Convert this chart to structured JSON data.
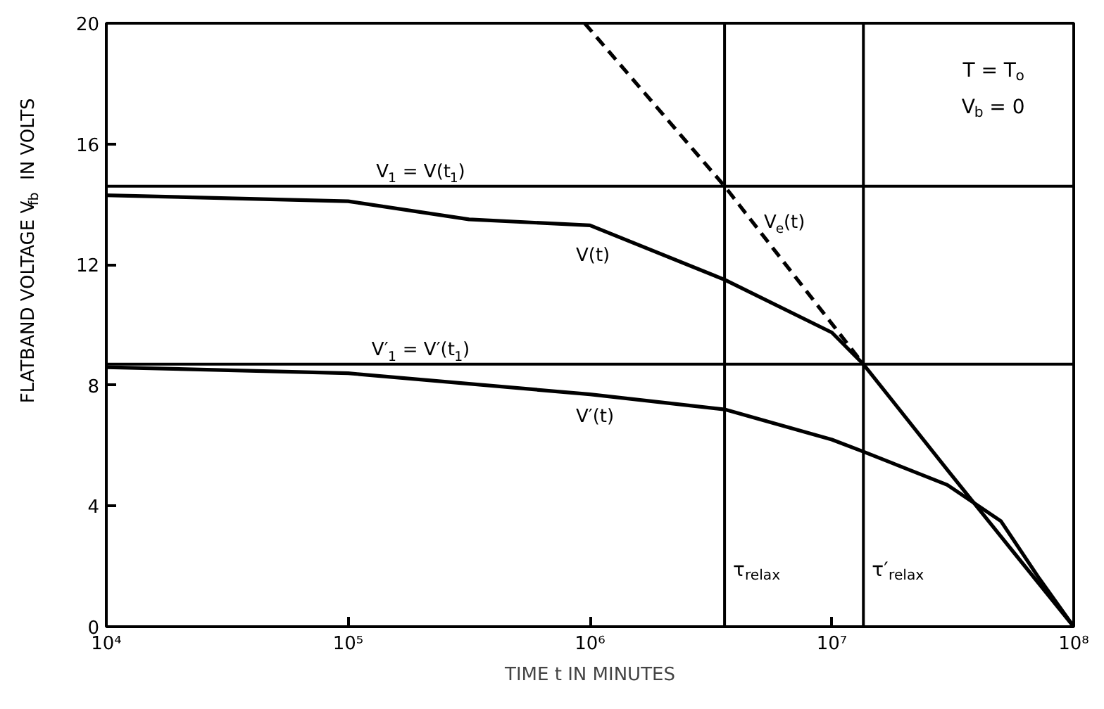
{
  "chart_data": {
    "type": "line",
    "xlabel": "TIME t IN MINUTES",
    "ylabel": "FLATBAND VOLTAGE V$_{fb}$ IN VOLTS",
    "log": "x",
    "xlim": [
      10000,
      100000000
    ],
    "ylim": [
      0,
      20
    ],
    "xticks": [
      {
        "value": 10000,
        "label": "10⁴"
      },
      {
        "value": 100000,
        "label": "10⁵"
      },
      {
        "value": 1000000,
        "label": "10⁶"
      },
      {
        "value": 10000000,
        "label": "10⁷"
      },
      {
        "value": 100000000,
        "label": "10⁸"
      }
    ],
    "yticks": [
      0,
      4,
      8,
      12,
      16,
      20
    ],
    "grid": false,
    "marker": "none",
    "series": [
      {
        "name": "V(t)",
        "color": "#000000",
        "line_style": "solid",
        "x": [
          10000,
          100000,
          316000,
          1000000,
          3600000,
          10000000,
          13500000,
          30000000,
          56000000,
          100000000
        ],
        "values": [
          14.3,
          14.1,
          13.5,
          13.3,
          11.5,
          9.75,
          8.7,
          5.2,
          2.5,
          0
        ]
      },
      {
        "name": "V′(t)",
        "color": "#000000",
        "line_style": "solid",
        "x": [
          10000,
          100000,
          1000000,
          3600000,
          10000000,
          13500000,
          30000000,
          50000000,
          72000000,
          100000000
        ],
        "values": [
          8.6,
          8.4,
          7.7,
          7.2,
          6.2,
          5.8,
          4.7,
          3.5,
          1.6,
          0
        ]
      },
      {
        "name": "V$_{e}$(t)",
        "color": "#000000",
        "line_style": "dashed",
        "x": [
          950000,
          3600000,
          13500000
        ],
        "values": [
          20,
          14.6,
          8.7
        ]
      }
    ],
    "ref_lines": [
      {
        "axis": "y",
        "value": 14.6,
        "label": "V$_{1}$ = V(t$_{1}$)"
      },
      {
        "axis": "y",
        "value": 8.7,
        "label": "V′$_{1}$ = V′(t$_{1}$)"
      },
      {
        "axis": "x",
        "value": 3600000,
        "label": "τ$_{relax}$"
      },
      {
        "axis": "x",
        "value": 13500000,
        "label": "τ′$_{relax}$"
      }
    ],
    "annotations": [
      "T = T$_{o}$",
      "V$_{b}$ = 0"
    ]
  }
}
